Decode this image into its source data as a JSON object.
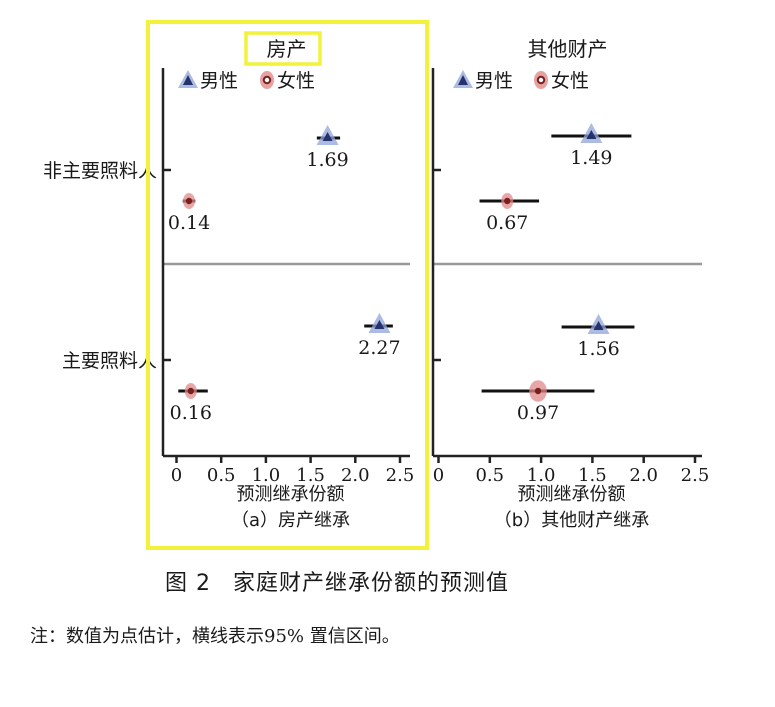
{
  "figure": {
    "number": "图 2",
    "title": "家庭财产继承份额的预测值",
    "note": "注：数值为点估计，横线表示95% 置信区间。"
  },
  "chart_data": [
    {
      "type": "scatter",
      "title": "房产",
      "subtitle": "（a）房产继承",
      "xlabel": "预测继承份额",
      "ylabel": "",
      "xlim": [
        -0.15,
        2.6
      ],
      "xticks": [
        "0",
        "0.5",
        "1.0",
        "1.5",
        "2.0",
        "2.5"
      ],
      "categories": [
        "非主要照料人",
        "主要照料人"
      ],
      "highlight": true,
      "legend_position": "top-left",
      "series": [
        {
          "name": "男性",
          "marker": "triangle",
          "values": [
            1.69,
            2.27
          ],
          "ci": [
            [
              1.57,
              1.83
            ],
            [
              2.1,
              2.42
            ]
          ],
          "labels": [
            "1.69",
            "2.27"
          ]
        },
        {
          "name": "女性",
          "marker": "circle",
          "values": [
            0.14,
            0.16
          ],
          "ci": [
            [
              0.07,
              0.21
            ],
            [
              0.02,
              0.35
            ]
          ],
          "labels": [
            "0.14",
            "0.16"
          ]
        }
      ]
    },
    {
      "type": "scatter",
      "title": "其他财产",
      "subtitle": "（b）其他财产继承",
      "xlabel": "预测继承份额",
      "ylabel": "",
      "xlim": [
        -0.05,
        2.6
      ],
      "xticks": [
        "0",
        "0.5",
        "1.0",
        "1.5",
        "2.0",
        "2.5"
      ],
      "categories": [
        "非主要照料人",
        "主要照料人"
      ],
      "highlight": false,
      "legend_position": "top-left",
      "series": [
        {
          "name": "男性",
          "marker": "triangle",
          "values": [
            1.49,
            1.56
          ],
          "ci": [
            [
              1.1,
              1.88
            ],
            [
              1.2,
              1.91
            ]
          ],
          "labels": [
            "1.49",
            "1.56"
          ]
        },
        {
          "name": "女性",
          "marker": "circle",
          "values": [
            0.67,
            0.97
          ],
          "ci": [
            [
              0.4,
              0.98
            ],
            [
              0.42,
              1.52
            ]
          ],
          "labels": [
            "0.67",
            "0.97"
          ]
        }
      ]
    }
  ],
  "colors": {
    "male": "#26326e",
    "male_halo": "#8fa4d8",
    "female": "#7a1f1f",
    "female_halo": "#e08a8a",
    "highlight": "#f2f23a",
    "divider": "#999999"
  }
}
